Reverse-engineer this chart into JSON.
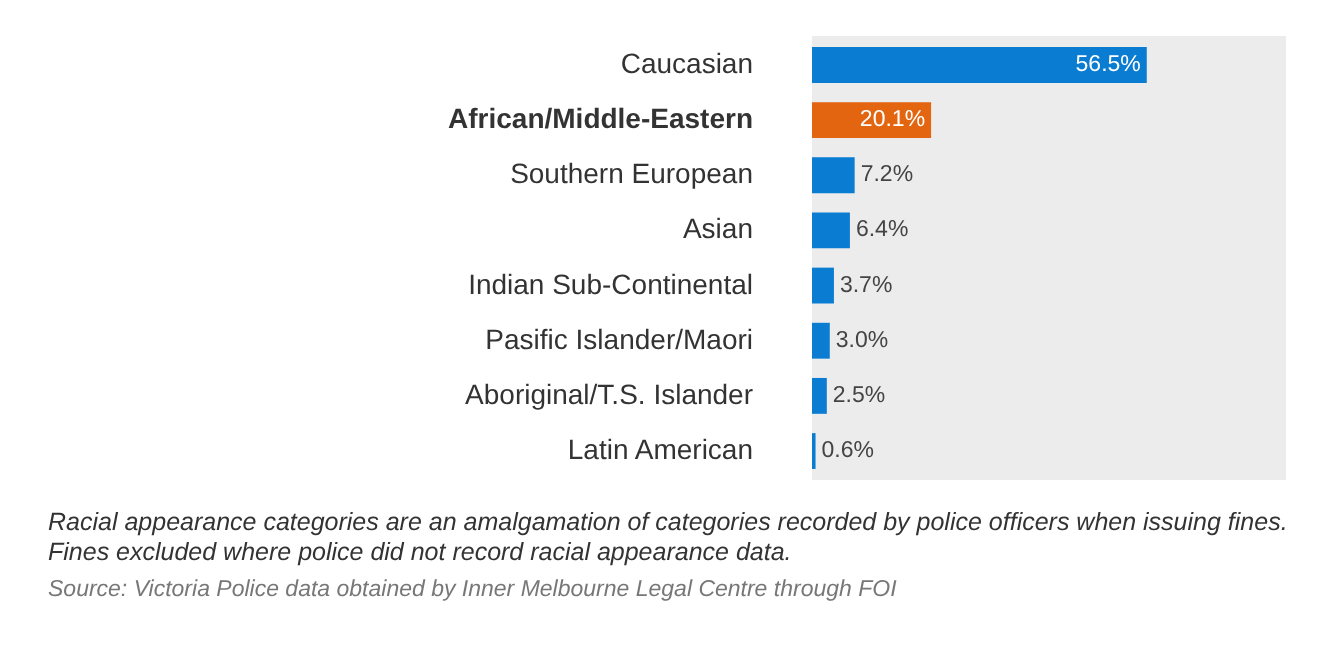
{
  "chart_data": {
    "type": "bar",
    "orientation": "horizontal",
    "categories": [
      "Caucasian",
      "African/Middle-Eastern",
      "Southern European",
      "Asian",
      "Indian Sub-Continental",
      "Pasific Islander/Maori",
      "Aboriginal/T.S. Islander",
      "Latin American"
    ],
    "values": [
      56.5,
      20.1,
      7.2,
      6.4,
      3.7,
      3.0,
      2.5,
      0.6
    ],
    "colors": [
      "#0a7cd1",
      "#e3650f",
      "#0a7cd1",
      "#0a7cd1",
      "#0a7cd1",
      "#0a7cd1",
      "#0a7cd1",
      "#0a7cd1"
    ],
    "value_labels": [
      "56.5%",
      "20.1%",
      "7.2%",
      "6.4%",
      "3.7%",
      "3.0%",
      "2.5%",
      "0.6%"
    ],
    "xlim": [
      0,
      80
    ],
    "annotations": [
      "Racial appearance categories are an amalgamation of categories recorded by police officers when issuing fines. Fines excluded where police did not record racial appearance data.",
      "Source: Victoria Police data obtained by Inner Melbourne Legal Centre through FOI"
    ]
  }
}
